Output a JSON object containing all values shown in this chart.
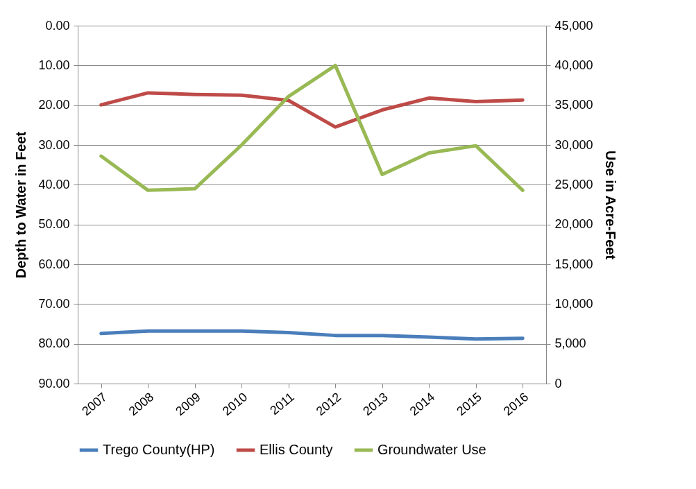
{
  "chart_data": {
    "type": "line",
    "ylabel": "Depth to Water in Feet",
    "y2label": "Use in Acre-Feet",
    "categories": [
      "2007",
      "2008",
      "2009",
      "2010",
      "2011",
      "2012",
      "2013",
      "2014",
      "2015",
      "2016"
    ],
    "series": [
      {
        "name": "Trego County(HP)",
        "color": "#4a7ebb",
        "values": [
          77.4,
          76.8,
          76.8,
          76.8,
          77.2,
          77.9,
          77.9,
          78.3,
          78.8,
          78.6
        ]
      },
      {
        "name": "Ellis County",
        "color": "#be4b48",
        "values": [
          19.9,
          16.9,
          17.3,
          17.5,
          18.8,
          25.5,
          21.2,
          18.2,
          19.1,
          18.7
        ]
      },
      {
        "name": "Groundwater Use",
        "color": "#98b954",
        "axis": "y2",
        "values": [
          28600,
          24300,
          24500,
          30000,
          36100,
          40000,
          26300,
          29000,
          29900,
          24300
        ]
      }
    ],
    "ylim": [
      90,
      0
    ],
    "yticks": [
      {
        "value": 0,
        "label": "0.00"
      },
      {
        "value": 10,
        "label": "10.00"
      },
      {
        "value": 20,
        "label": "20.00"
      },
      {
        "value": 30,
        "label": "30.00"
      },
      {
        "value": 40,
        "label": "40.00"
      },
      {
        "value": 50,
        "label": "50.00"
      },
      {
        "value": 60,
        "label": "60.00"
      },
      {
        "value": 70,
        "label": "70.00"
      },
      {
        "value": 80,
        "label": "80.00"
      },
      {
        "value": 90,
        "label": "90.00"
      }
    ],
    "y2lim": [
      0,
      45000
    ],
    "y2ticks": [
      0,
      {
        "value": 5000,
        "label": "5,000"
      },
      {
        "value": 10000,
        "label": "10,000"
      },
      {
        "value": 15000,
        "label": "15,000"
      },
      {
        "value": 20000,
        "label": "20,000"
      },
      {
        "value": 25000,
        "label": "25,000"
      },
      {
        "value": 30000,
        "label": "30,000"
      },
      {
        "value": 35000,
        "label": "35,000"
      },
      {
        "value": 40000,
        "label": "40,000"
      },
      {
        "value": 45000,
        "label": "45,000"
      }
    ],
    "grid": "y",
    "legend": "bottom",
    "marker": "none",
    "line_style": "solid"
  }
}
